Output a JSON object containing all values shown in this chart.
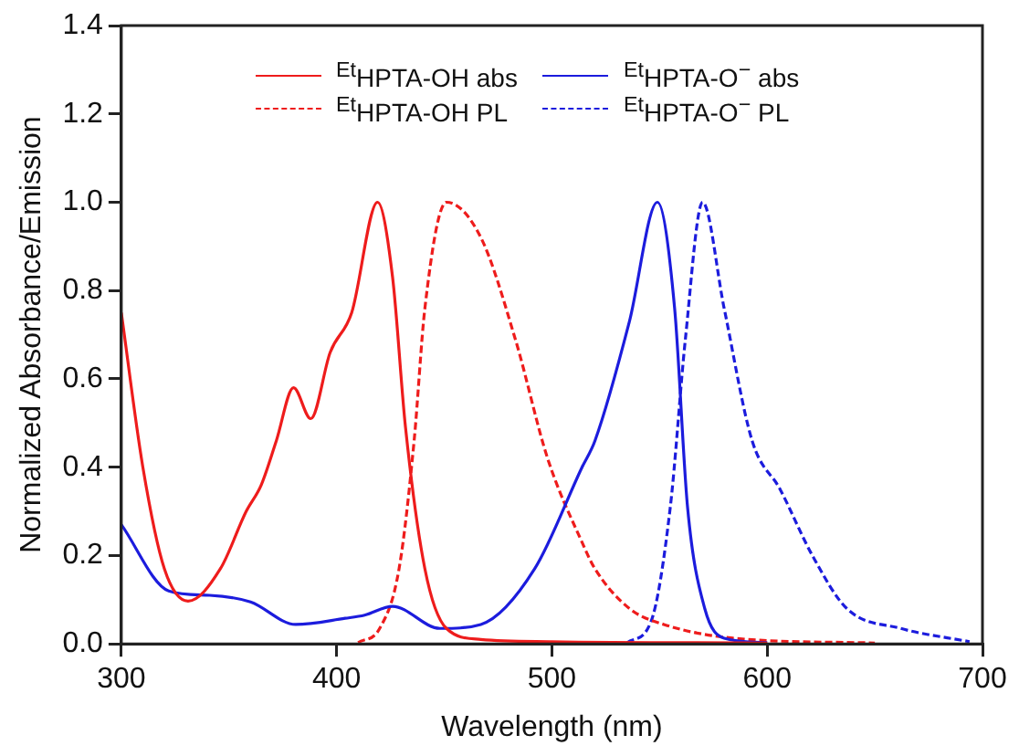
{
  "chart_data": {
    "type": "line",
    "xlabel": "Wavelength (nm)",
    "ylabel": "Normalized Absorbance/Emission",
    "xlim": [
      300,
      700
    ],
    "xticks": [
      300,
      400,
      500,
      600,
      700
    ],
    "ylim": [
      0,
      1.4
    ],
    "yticks": [
      {
        "value": 0,
        "label": "0.0"
      },
      {
        "value": 0.2,
        "label": "0.2"
      },
      {
        "value": 0.4,
        "label": "0.4"
      },
      {
        "value": 0.6,
        "label": "0.6"
      },
      {
        "value": 0.8,
        "label": "0.8"
      },
      {
        "value": 1,
        "label": "1.0"
      },
      {
        "value": 1.2,
        "label": "1.2"
      },
      {
        "value": 1.4,
        "label": "1.4"
      }
    ],
    "grid": false,
    "legend": "top",
    "marker": "none",
    "series": [
      {
        "name": "$^{Et}$HPTA-OH abs",
        "color": "#ee1c1c",
        "line_style": "solid",
        "x": [
          300,
          310,
          320,
          331,
          346,
          358,
          365,
          372,
          380,
          388,
          397,
          407,
          419,
          426,
          432,
          441,
          451,
          467,
          500,
          600
        ],
        "values": [
          0.75,
          0.4,
          0.17,
          0.097,
          0.17,
          0.3,
          0.36,
          0.46,
          0.58,
          0.51,
          0.66,
          0.75,
          1.0,
          0.83,
          0.49,
          0.17,
          0.035,
          0.01,
          0.005,
          0.002
        ]
      },
      {
        "name": "$^{Et}$HPTA-O$^{−}$ abs",
        "color": "#1c1cdd",
        "line_style": "solid",
        "x": [
          300,
          322,
          341,
          360,
          381,
          404,
          413,
          426,
          448,
          467,
          492,
          514,
          520,
          536,
          549,
          557,
          563,
          571,
          580,
          600
        ],
        "values": [
          0.27,
          0.12,
          0.11,
          0.095,
          0.044,
          0.058,
          0.065,
          0.085,
          0.035,
          0.044,
          0.17,
          0.4,
          0.46,
          0.73,
          1.0,
          0.76,
          0.31,
          0.08,
          0.013,
          0.003
        ]
      },
      {
        "name": "$^{Et}$HPTA-OH PL",
        "color": "#ee1c1c",
        "line_style": "dashed",
        "x": [
          410,
          420,
          429,
          436,
          441,
          451,
          467,
          483,
          498,
          514,
          520,
          536,
          552,
          584,
          650
        ],
        "values": [
          0.003,
          0.035,
          0.17,
          0.46,
          0.76,
          1.0,
          0.92,
          0.69,
          0.42,
          0.23,
          0.17,
          0.08,
          0.044,
          0.013,
          0.002
        ]
      },
      {
        "name": "$^{Et}$HPTA-O$^{−}$ PL",
        "color": "#1c1cdd",
        "line_style": "dashed",
        "x": [
          535,
          546,
          555,
          562,
          570,
          580,
          593,
          606,
          621,
          637,
          662,
          694
        ],
        "values": [
          0.003,
          0.05,
          0.31,
          0.69,
          1.0,
          0.76,
          0.46,
          0.35,
          0.2,
          0.08,
          0.035,
          0.005
        ]
      }
    ]
  }
}
